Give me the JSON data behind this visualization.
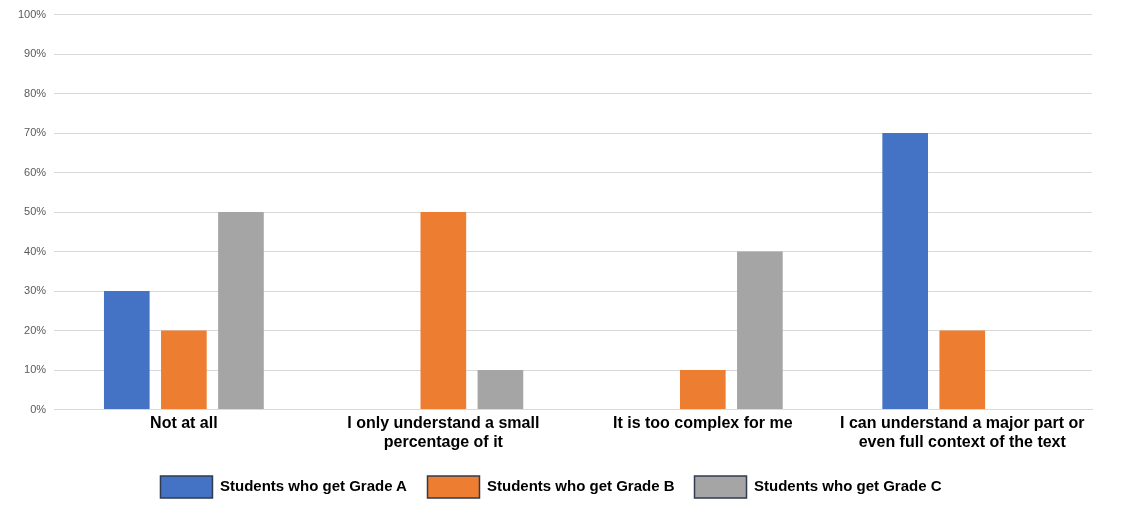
{
  "chart_data": {
    "type": "bar",
    "categories": [
      "Not at all",
      "I only understand a small percentage of it",
      "It is too complex for me",
      "I can understand a major part or even full context of the text"
    ],
    "series": [
      {
        "name": "Students who get Grade A",
        "color": "#4472c4",
        "values": [
          30,
          0,
          0,
          70
        ]
      },
      {
        "name": "Students who get Grade B",
        "color": "#ed7d31",
        "values": [
          20,
          50,
          10,
          20
        ]
      },
      {
        "name": "Students who get Grade C",
        "color": "#a5a5a5",
        "values": [
          50,
          10,
          40,
          0
        ]
      }
    ],
    "ylim": [
      0,
      100
    ],
    "yticks": [
      {
        "value": 0,
        "label": "0%"
      },
      {
        "value": 10,
        "label": "10%"
      },
      {
        "value": 20,
        "label": "20%"
      },
      {
        "value": 30,
        "label": "30%"
      },
      {
        "value": 40,
        "label": "40%"
      },
      {
        "value": 50,
        "label": "50%"
      },
      {
        "value": 60,
        "label": "60%"
      },
      {
        "value": 70,
        "label": "70%"
      },
      {
        "value": 80,
        "label": "80%"
      },
      {
        "value": 90,
        "label": "90%"
      },
      {
        "value": 100,
        "label": "100%"
      }
    ],
    "grid": "y",
    "legend": "bottom"
  }
}
